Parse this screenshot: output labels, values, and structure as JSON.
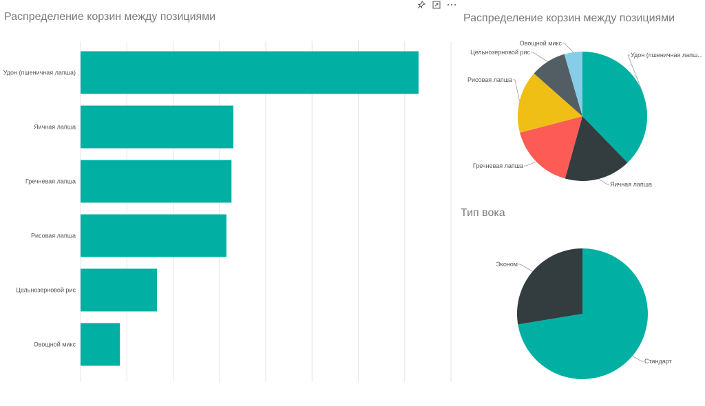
{
  "toolbar": {
    "pin_icon": "pin-icon",
    "focus_icon": "focus-mode-icon",
    "more_icon": "more-options-icon"
  },
  "colors": {
    "teal": "#01B0A3",
    "dark": "#333D3F",
    "red": "#FD5B56",
    "yellow": "#EFBF16",
    "slate": "#535E64",
    "light_blue": "#86CEE8",
    "grid": "#e6e6e6"
  },
  "chart_data": [
    {
      "type": "bar",
      "orientation": "horizontal",
      "title": "Распределение корзин между позициями",
      "categories": [
        "Удон (пшеничная лапша)",
        "Яичная лапша",
        "Гречневая лапша",
        "Рисовая лапша",
        "Цельнозерновой рис",
        "Овощной микс"
      ],
      "values": [
        73,
        33,
        32.6,
        31.5,
        16.5,
        8.5
      ],
      "xlim": [
        0,
        80
      ],
      "grid": true,
      "x_tick_labels_visible": false
    },
    {
      "type": "pie",
      "title": "Распределение корзин между позициями",
      "labels": [
        "Удон (пшеничная лапш...",
        "Яичная лапша",
        "Гречневая лапша",
        "Рисовая лапша",
        "Цельнозерновой рис",
        "Овощной микс"
      ],
      "values": [
        37.5,
        16.5,
        16.5,
        15.5,
        8.9,
        4.5
      ]
    },
    {
      "type": "pie",
      "title": "Тип вока",
      "labels": [
        "Стандарт",
        "Эконом"
      ],
      "values": [
        72.4,
        27.6
      ]
    }
  ]
}
